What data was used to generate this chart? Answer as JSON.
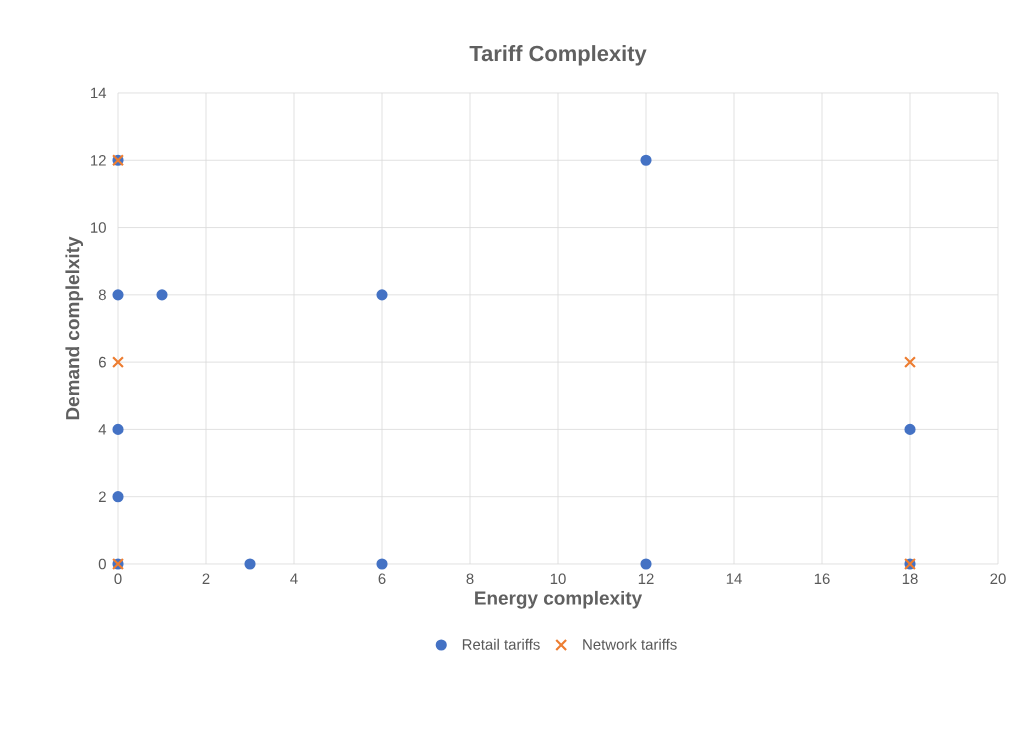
{
  "chart_data": {
    "type": "scatter",
    "title": "Tariff Complexity",
    "xlabel": "Energy complexity",
    "ylabel": "Demand complelxity",
    "xlim": [
      0,
      20
    ],
    "xticks": [
      0,
      2,
      4,
      6,
      8,
      10,
      12,
      14,
      16,
      18,
      20
    ],
    "ylim": [
      0,
      14
    ],
    "yticks": [
      0,
      2,
      4,
      6,
      8,
      10,
      12,
      14
    ],
    "grid": true,
    "legend": "bottom",
    "series": [
      {
        "name": "Retail tariffs",
        "color": "#4472c4",
        "marker": "circle",
        "x": [
          0,
          0,
          1,
          6,
          12,
          0,
          0,
          0,
          3,
          6,
          12,
          18,
          18
        ],
        "values": [
          12,
          8,
          8,
          8,
          12,
          4,
          2,
          0,
          0,
          0,
          0,
          4,
          0
        ]
      },
      {
        "name": "Network tariffs",
        "color": "#ed7d31",
        "marker": "cross",
        "x": [
          0,
          0,
          0,
          18,
          18
        ],
        "values": [
          12,
          6,
          0,
          6,
          0
        ]
      }
    ]
  }
}
